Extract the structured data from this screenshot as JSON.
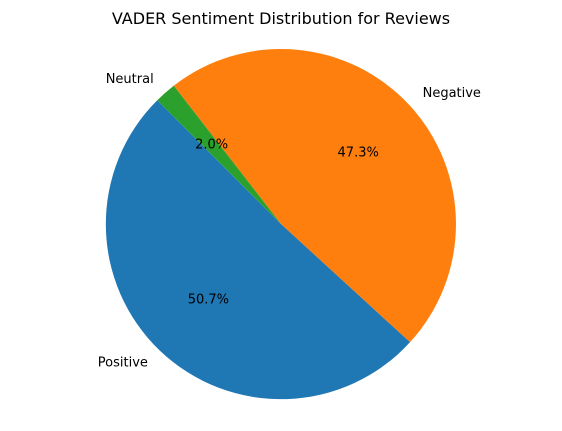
{
  "chart_data": {
    "type": "pie",
    "title": "VADER Sentiment Distribution for Reviews",
    "categories": [
      "Positive",
      "Negative",
      "Neutral"
    ],
    "values": [
      50.7,
      47.3,
      2.0
    ],
    "labels": [
      "50.7%",
      "47.3%",
      "2.0%"
    ],
    "colors": [
      "#1f77b4",
      "#ff7f0e",
      "#2ca02c"
    ],
    "legend": "none"
  }
}
